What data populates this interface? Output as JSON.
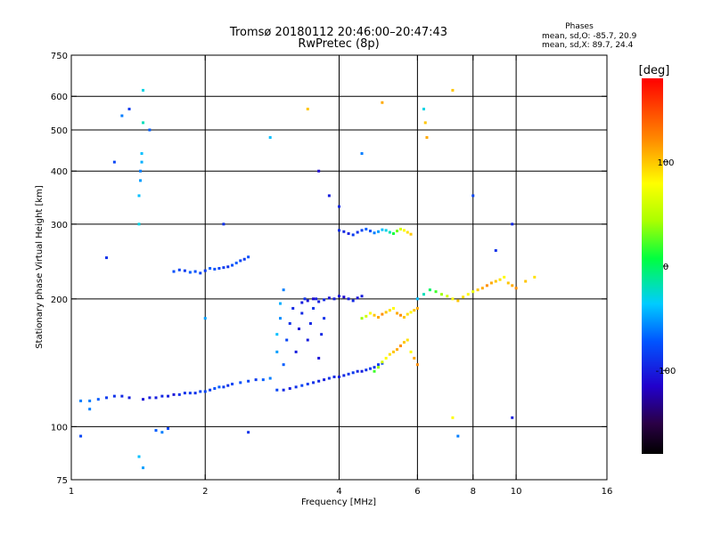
{
  "header": {
    "title_line1": "Tromsø 20180112 20:46:00–20:47:43",
    "title_line2": "RwPretec (8p)",
    "phase_title": "Phases",
    "phase_o": "mean, sd,O: -85.7, 20.9",
    "phase_x": "mean, sd,X: 89.7, 24.4"
  },
  "chart_data": {
    "type": "scatter",
    "xlabel": "Frequency [MHz]",
    "ylabel": "Stationary phase Virtual Height [km]",
    "x_scale": "log",
    "y_scale": "log",
    "xlim": [
      1,
      16
    ],
    "ylim": [
      75,
      750
    ],
    "x_ticks": [
      1,
      2,
      4,
      6,
      8,
      10,
      16
    ],
    "x_tick_labels": [
      "1",
      "2",
      "4",
      "6",
      "8",
      "10",
      "16"
    ],
    "y_ticks": [
      75,
      100,
      200,
      300,
      400,
      500,
      600,
      750
    ],
    "y_tick_labels": [
      "75",
      "100",
      "200",
      "300",
      "400",
      "500",
      "600",
      "750"
    ],
    "x_grid": [
      2,
      4,
      6,
      8,
      10
    ],
    "y_grid": [
      100,
      200,
      300,
      400,
      500,
      600
    ],
    "grid": true,
    "colorbar": {
      "label": "[deg]",
      "range": [
        -180,
        180
      ],
      "ticks": [
        100,
        0,
        -100
      ],
      "tick_labels": [
        "100",
        "0",
        "-100"
      ]
    },
    "series": [
      {
        "x": [
          1.05,
          1.1,
          1.15,
          1.2,
          1.25,
          1.3,
          1.35,
          1.45,
          1.5,
          1.55,
          1.6,
          1.65,
          1.7,
          1.75,
          1.8,
          1.85,
          1.9,
          1.95,
          2.0,
          2.05,
          2.1,
          2.15,
          2.2,
          2.25,
          2.3,
          2.4,
          2.5,
          2.6,
          2.7,
          2.8,
          2.9,
          3.0,
          3.1,
          3.2,
          3.3,
          3.4,
          3.5,
          3.6,
          3.7,
          3.8,
          3.9,
          4.0,
          4.1,
          4.2,
          4.3,
          4.4,
          4.5,
          4.6,
          4.7,
          4.8,
          4.9,
          5.0
        ],
        "y": [
          115,
          115,
          116,
          117,
          118,
          118,
          117,
          116,
          117,
          117,
          118,
          118,
          119,
          119,
          120,
          120,
          120,
          121,
          121,
          122,
          123,
          124,
          124,
          125,
          126,
          127,
          128,
          129,
          129,
          130,
          122,
          122,
          123,
          124,
          125,
          126,
          127,
          128,
          129,
          130,
          131,
          131,
          132,
          133,
          134,
          135,
          135,
          136,
          137,
          138,
          140,
          141
        ],
        "phase": [
          -60,
          -60,
          -70,
          -85,
          -90,
          -95,
          -100,
          -105,
          -100,
          -100,
          -95,
          -100,
          -105,
          -90,
          -90,
          -85,
          -90,
          -80,
          -80,
          -85,
          -75,
          -70,
          -85,
          -90,
          -80,
          -75,
          -80,
          -85,
          -70,
          -60,
          -80,
          -95,
          -100,
          -90,
          -80,
          -85,
          -90,
          -95,
          -100,
          -90,
          -95,
          -100,
          -95,
          -90,
          -85,
          -95,
          -100,
          -90,
          -85,
          -90,
          -85,
          -80
        ]
      },
      {
        "x": [
          2.9,
          2.9,
          2.95,
          2.95,
          3.0,
          3.0,
          3.05,
          3.1,
          3.15,
          3.2,
          3.25,
          3.3,
          3.35,
          3.4,
          3.45,
          3.5,
          3.55,
          3.6,
          3.65,
          3.7
        ],
        "y": [
          150,
          165,
          180,
          195,
          210,
          140,
          160,
          175,
          190,
          150,
          170,
          185,
          200,
          160,
          175,
          190,
          200,
          145,
          165,
          180
        ],
        "phase": [
          -50,
          -40,
          -55,
          -45,
          -60,
          -70,
          -80,
          -90,
          -95,
          -100,
          -105,
          -95,
          -90,
          -100,
          -95,
          -90,
          -100,
          -105,
          -95,
          -90
        ]
      },
      {
        "x": [
          1.7,
          1.75,
          1.8,
          1.85,
          1.9,
          1.95,
          2.0,
          2.05,
          2.1,
          2.15,
          2.2,
          2.25,
          2.3,
          2.35,
          2.4,
          2.45,
          2.5
        ],
        "y": [
          232,
          234,
          233,
          231,
          232,
          230,
          233,
          236,
          235,
          236,
          237,
          238,
          240,
          243,
          246,
          248,
          251
        ],
        "phase": [
          -75,
          -80,
          -85,
          -70,
          -75,
          -80,
          -85,
          -70,
          -75,
          -80,
          -85,
          -90,
          -75,
          -70,
          -80,
          -85,
          -75
        ]
      },
      {
        "x": [
          3.3,
          3.4,
          3.5,
          3.6,
          3.7,
          3.8,
          3.9,
          4.0,
          4.1,
          4.2,
          4.3,
          4.4,
          4.5
        ],
        "y": [
          196,
          198,
          200,
          197,
          199,
          201,
          200,
          203,
          202,
          200,
          198,
          201,
          203
        ],
        "phase": [
          -100,
          -105,
          -110,
          -100,
          -95,
          -105,
          -100,
          -105,
          -110,
          -100,
          -95,
          -105,
          -100
        ]
      },
      {
        "x": [
          4.0,
          4.1,
          4.2,
          4.3,
          4.4,
          4.5,
          4.6,
          4.7,
          4.8,
          4.9,
          5.0,
          5.1,
          5.2,
          5.3,
          5.4,
          5.5,
          5.6,
          5.7,
          5.8
        ],
        "y": [
          290,
          288,
          285,
          283,
          287,
          290,
          292,
          289,
          286,
          288,
          291,
          290,
          287,
          285,
          289,
          292,
          290,
          287,
          284
        ],
        "phase": [
          -90,
          -95,
          -100,
          -85,
          -90,
          -80,
          -70,
          -75,
          -60,
          -50,
          -40,
          -30,
          -20,
          10,
          30,
          60,
          80,
          90,
          100
        ]
      },
      {
        "x": [
          4.5,
          4.6,
          4.7,
          4.8,
          4.9,
          5.0,
          5.1,
          5.2,
          5.3,
          5.4,
          5.5,
          5.6,
          5.7,
          5.8,
          5.9,
          6.0
        ],
        "y": [
          180,
          182,
          185,
          183,
          181,
          184,
          186,
          188,
          190,
          185,
          183,
          181,
          184,
          186,
          188,
          190
        ],
        "phase": [
          40,
          60,
          80,
          100,
          110,
          120,
          100,
          90,
          80,
          110,
          120,
          100,
          90,
          80,
          100,
          110
        ]
      },
      {
        "x": [
          4.8,
          4.9,
          5.0,
          5.1,
          5.2,
          5.3,
          5.4,
          5.5,
          5.6,
          5.7,
          5.8,
          5.9,
          6.0
        ],
        "y": [
          135,
          138,
          142,
          145,
          148,
          150,
          152,
          155,
          158,
          160,
          150,
          145,
          140
        ],
        "phase": [
          20,
          40,
          60,
          80,
          90,
          100,
          110,
          120,
          100,
          90,
          80,
          110,
          120
        ]
      },
      {
        "x": [
          6.0,
          6.2,
          6.4,
          6.6,
          6.8,
          7.0,
          7.2,
          7.4,
          7.6,
          7.8,
          8.0,
          8.2,
          8.4,
          8.6,
          8.8,
          9.0,
          9.2,
          9.4,
          9.6,
          9.8,
          10.0,
          10.5,
          11.0
        ],
        "y": [
          200,
          205,
          210,
          208,
          205,
          203,
          200,
          198,
          202,
          205,
          208,
          210,
          212,
          215,
          218,
          220,
          222,
          225,
          218,
          215,
          212,
          220,
          225
        ],
        "phase": [
          -40,
          -20,
          0,
          20,
          40,
          60,
          80,
          100,
          90,
          80,
          70,
          100,
          110,
          120,
          110,
          100,
          90,
          80,
          100,
          110,
          120,
          100,
          90
        ]
      },
      {
        "x": [
          1.42,
          1.42,
          1.43,
          1.43,
          1.44,
          1.44,
          1.45,
          1.45
        ],
        "y": [
          300,
          350,
          380,
          400,
          420,
          440,
          520,
          620
        ],
        "phase": [
          -30,
          -40,
          -50,
          -60,
          -45,
          -40,
          -20,
          -30
        ]
      },
      {
        "x": [
          1.2,
          1.25,
          1.3,
          1.35,
          1.5,
          2.0,
          2.2,
          2.8,
          3.4,
          3.6,
          3.8,
          4.0,
          4.5,
          5.0,
          6.2,
          6.25,
          6.3,
          7.2,
          8.0,
          9.0,
          9.8
        ],
        "y": [
          250,
          420,
          540,
          560,
          500,
          180,
          300,
          480,
          560,
          400,
          350,
          330,
          440,
          580,
          560,
          520,
          480,
          620,
          350,
          260,
          300
        ],
        "phase": [
          -90,
          -80,
          -60,
          -85,
          -70,
          -50,
          -90,
          -40,
          100,
          -110,
          -100,
          -95,
          -60,
          110,
          -30,
          100,
          110,
          100,
          -80,
          -90,
          -95
        ]
      },
      {
        "x": [
          1.05,
          1.1,
          1.42,
          1.45,
          1.55,
          1.6,
          1.65,
          2.5,
          7.2,
          7.4,
          9.8
        ],
        "y": [
          95,
          110,
          85,
          80,
          98,
          97,
          99,
          97,
          105,
          95,
          105
        ],
        "phase": [
          -80,
          -60,
          -40,
          -50,
          -70,
          -60,
          -80,
          -90,
          80,
          -60,
          -100
        ]
      }
    ]
  }
}
